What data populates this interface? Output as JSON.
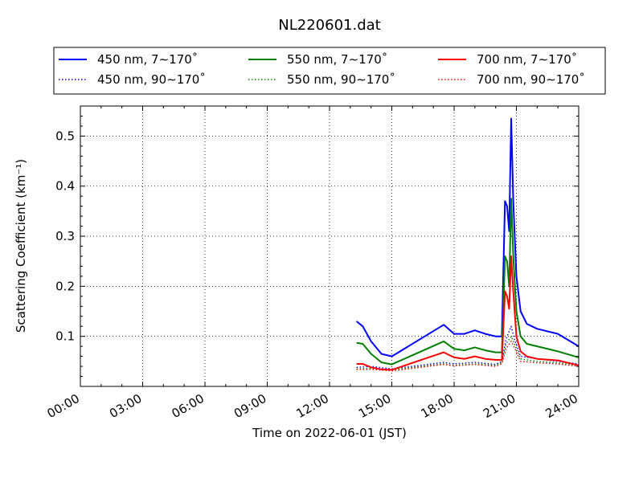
{
  "chart_data": {
    "type": "line",
    "title": "NL220601.dat",
    "xlabel": "Time on 2022-06-01 (JST)",
    "ylabel": "Scattering Coefficient (km⁻¹)",
    "xlim": [
      0,
      24
    ],
    "ylim": [
      0,
      0.56
    ],
    "x_tick_values": [
      0,
      3,
      6,
      9,
      12,
      15,
      18,
      21,
      24
    ],
    "x_tick_labels": [
      "00:00",
      "03:00",
      "06:00",
      "09:00",
      "12:00",
      "15:00",
      "18:00",
      "21:00",
      "24:00"
    ],
    "y_tick_values": [
      0.1,
      0.2,
      0.3,
      0.4,
      0.5
    ],
    "y_tick_labels": [
      "0.1",
      "0.2",
      "0.3",
      "0.4",
      "0.5"
    ],
    "grid": true,
    "legend_position": "top",
    "series": [
      {
        "name": "450 nm, 7∼170˚",
        "color": "#0000ff",
        "dash": "solid",
        "x": [
          13.3,
          13.6,
          14.0,
          14.5,
          15.0,
          17.5,
          18.0,
          18.5,
          19.0,
          19.5,
          20.0,
          20.3,
          20.45,
          20.55,
          20.65,
          20.75,
          20.85,
          21.0,
          21.2,
          21.5,
          22.0,
          23.0,
          24.0
        ],
        "y": [
          0.13,
          0.12,
          0.09,
          0.065,
          0.06,
          0.123,
          0.105,
          0.105,
          0.112,
          0.105,
          0.1,
          0.1,
          0.37,
          0.36,
          0.31,
          0.535,
          0.37,
          0.22,
          0.15,
          0.125,
          0.115,
          0.105,
          0.08
        ]
      },
      {
        "name": "450 nm, 90∼170˚",
        "color": "#0000ff",
        "dash": "dotted",
        "x": [
          13.3,
          14.0,
          15.0,
          17.5,
          18.0,
          19.0,
          20.0,
          20.3,
          20.5,
          20.75,
          20.9,
          21.2,
          22.0,
          23.0,
          24.0
        ],
        "y": [
          0.038,
          0.04,
          0.035,
          0.048,
          0.045,
          0.048,
          0.044,
          0.05,
          0.095,
          0.12,
          0.095,
          0.06,
          0.055,
          0.05,
          0.045
        ]
      },
      {
        "name": "550 nm, 7∼170˚",
        "color": "#008000",
        "dash": "solid",
        "x": [
          13.3,
          13.6,
          14.0,
          14.5,
          15.0,
          17.5,
          18.0,
          18.5,
          19.0,
          19.5,
          20.0,
          20.3,
          20.45,
          20.55,
          20.65,
          20.75,
          20.85,
          21.0,
          21.2,
          21.5,
          22.0,
          23.0,
          24.0
        ],
        "y": [
          0.087,
          0.085,
          0.065,
          0.048,
          0.044,
          0.09,
          0.075,
          0.072,
          0.078,
          0.072,
          0.068,
          0.068,
          0.26,
          0.25,
          0.2,
          0.375,
          0.26,
          0.15,
          0.1,
          0.085,
          0.08,
          0.07,
          0.058
        ]
      },
      {
        "name": "550 nm, 90∼170˚",
        "color": "#008000",
        "dash": "dotted",
        "x": [
          13.3,
          14.0,
          15.0,
          17.5,
          18.0,
          19.0,
          20.0,
          20.3,
          20.5,
          20.75,
          20.9,
          21.2,
          22.0,
          23.0,
          24.0
        ],
        "y": [
          0.035,
          0.036,
          0.033,
          0.045,
          0.042,
          0.045,
          0.042,
          0.047,
          0.085,
          0.1,
          0.085,
          0.055,
          0.05,
          0.047,
          0.042
        ]
      },
      {
        "name": "700 nm, 7∼170˚",
        "color": "#ff0000",
        "dash": "solid",
        "x": [
          13.3,
          13.6,
          14.0,
          14.5,
          15.0,
          17.5,
          18.0,
          18.5,
          19.0,
          19.5,
          20.0,
          20.3,
          20.45,
          20.55,
          20.65,
          20.75,
          20.85,
          21.0,
          21.2,
          21.5,
          22.0,
          23.0,
          24.0
        ],
        "y": [
          0.045,
          0.045,
          0.038,
          0.034,
          0.033,
          0.068,
          0.058,
          0.055,
          0.06,
          0.055,
          0.053,
          0.053,
          0.19,
          0.18,
          0.155,
          0.26,
          0.19,
          0.1,
          0.07,
          0.06,
          0.055,
          0.052,
          0.042
        ]
      },
      {
        "name": "700 nm, 90∼170˚",
        "color": "#ff0000",
        "dash": "dotted",
        "x": [
          13.3,
          14.0,
          15.0,
          17.5,
          18.0,
          19.0,
          20.0,
          20.3,
          20.5,
          20.75,
          20.9,
          21.2,
          22.0,
          23.0,
          24.0
        ],
        "y": [
          0.034,
          0.034,
          0.031,
          0.044,
          0.041,
          0.044,
          0.04,
          0.045,
          0.075,
          0.09,
          0.078,
          0.05,
          0.047,
          0.045,
          0.04
        ]
      }
    ]
  }
}
